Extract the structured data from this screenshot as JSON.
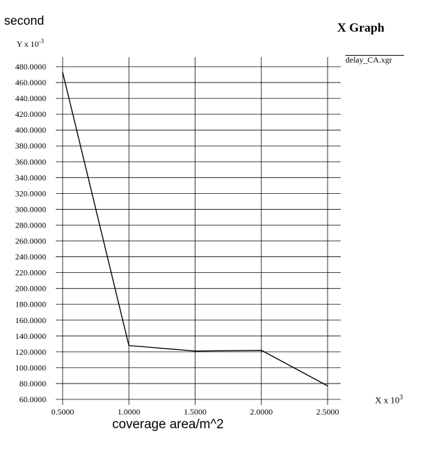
{
  "labels": {
    "y_outer": "second",
    "y_scale_base": "Y x 10",
    "y_scale_exp": "-3",
    "x_scale_base": "X x 10",
    "x_scale_exp": "3",
    "x_outer": "coverage area/m^2",
    "title": "X Graph",
    "legend": "delay_CA.xgr"
  },
  "colors": {
    "line": "#000000",
    "grid": "#000000",
    "background": "#ffffff"
  },
  "chart_data": {
    "type": "line",
    "title": "X Graph",
    "xlabel": "coverage area/m^2",
    "ylabel": "second",
    "xscale_label": "X x 10^3",
    "yscale_label": "Y x 10^-3",
    "xlim": [
      0.5,
      2.5
    ],
    "ylim": [
      60,
      480
    ],
    "grid": true,
    "legend_placement": "top-right",
    "x_ticks": [
      0.5,
      1.0,
      1.5,
      2.0,
      2.5
    ],
    "x_tick_labels": [
      "0.5000",
      "1.0000",
      "1.5000",
      "2.0000",
      "2.5000"
    ],
    "y_ticks": [
      60,
      80,
      100,
      120,
      140,
      160,
      180,
      200,
      220,
      240,
      260,
      280,
      300,
      320,
      340,
      360,
      380,
      400,
      420,
      440,
      460,
      480
    ],
    "y_tick_labels": [
      "60.0000",
      "80.0000",
      "100.0000",
      "120.0000",
      "140.0000",
      "160.0000",
      "180.0000",
      "200.0000",
      "220.0000",
      "240.0000",
      "260.0000",
      "280.0000",
      "300.0000",
      "320.0000",
      "340.0000",
      "360.0000",
      "380.0000",
      "400.0000",
      "420.0000",
      "440.0000",
      "460.0000",
      "480.0000"
    ],
    "series": [
      {
        "name": "delay_CA.xgr",
        "x": [
          0.5,
          1.0,
          1.5,
          2.0,
          2.5
        ],
        "y": [
          473,
          128,
          121,
          122,
          77
        ]
      }
    ]
  }
}
